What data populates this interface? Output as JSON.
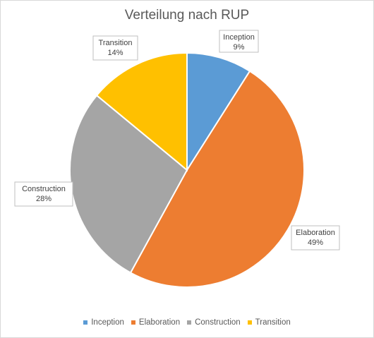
{
  "chart_data": {
    "type": "pie",
    "title": "Verteilung nach RUP",
    "categories": [
      "Inception",
      "Elaboration",
      "Construction",
      "Transition"
    ],
    "values": [
      9,
      49,
      28,
      14
    ],
    "value_labels": [
      "9%",
      "49%",
      "28%",
      "14%"
    ],
    "colors": [
      "#5b9bd5",
      "#ed7d31",
      "#a5a5a5",
      "#ffc000"
    ],
    "legend_position": "bottom",
    "start_angle_deg": 0,
    "direction": "clockwise"
  }
}
